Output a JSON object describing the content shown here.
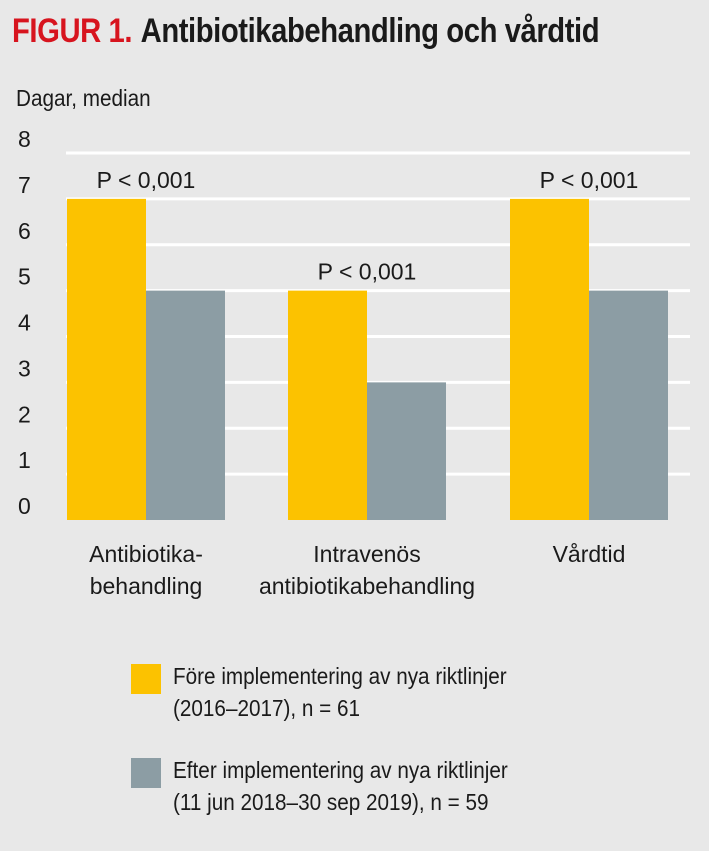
{
  "chart_data": {
    "type": "bar",
    "title_prefix": "FIGUR 1.",
    "title": "Antibiotikabehandling och vårdtid",
    "ylabel": "Dagar, median",
    "xlabel": "",
    "ylim": [
      0,
      8
    ],
    "yticks": [
      "0",
      "1",
      "2",
      "3",
      "4",
      "5",
      "6",
      "7",
      "8"
    ],
    "grid": true,
    "categories": [
      [
        "Antibiotika-",
        "behandling"
      ],
      [
        "Intravenös",
        "antibiotikabehandling"
      ],
      [
        "Vårdtid"
      ]
    ],
    "series": [
      {
        "name": "Före implementering av nya riktlinjer",
        "name_line2": "(2016–2017), n = 61",
        "color": "#fcc200",
        "values": [
          7,
          5,
          7
        ]
      },
      {
        "name": "Efter implementering av nya riktlinjer",
        "name_line2": "(11 jun 2018–30 sep 2019), n = 59",
        "color": "#8c9da4",
        "values": [
          5,
          3,
          5
        ]
      }
    ],
    "annotations": [
      "P < 0,001",
      "P < 0,001",
      "P < 0,001"
    ],
    "legend_position": "bottom"
  }
}
